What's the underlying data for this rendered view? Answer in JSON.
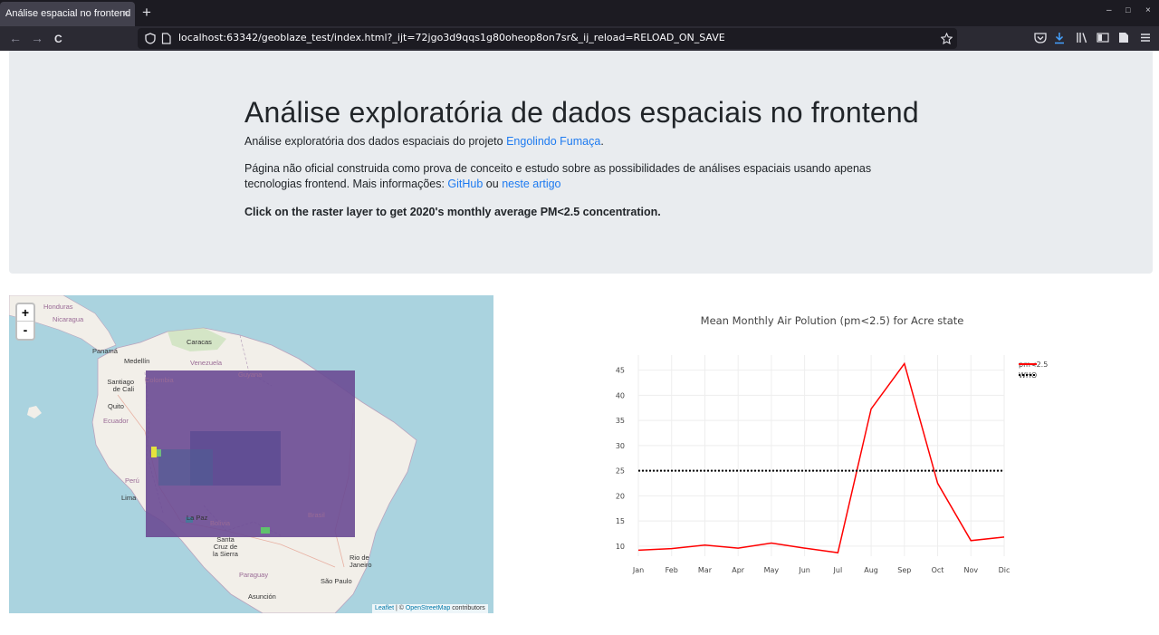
{
  "browser": {
    "tab_title": "Análise espacial no frontend",
    "tab_close": "×",
    "new_tab": "+",
    "url": "localhost:63342/geoblaze_test/index.html?_ijt=72jgo3d9qqs1g80oheop8on7sr&_ij_reload=RELOAD_ON_SAVE",
    "back": "←",
    "forward": "→",
    "reload": "C",
    "minimize": "–",
    "maximize": "□",
    "close": "×"
  },
  "header": {
    "title": "Análise exploratória de dados espaciais no frontend",
    "intro_prefix": "Análise exploratória dos dados espaciais do projeto ",
    "intro_link": "Engolindo Fumaça",
    "intro_suffix": ".",
    "desc_prefix": "Página não oficial construida como prova de conceito e estudo sobre as possibilidades de análises espaciais usando apenas tecnologias frontend. Mais informações: ",
    "github_link": "GitHub",
    "desc_or": " ou ",
    "article_link": "neste artigo",
    "instruction": "Click on the raster layer to get 2020's monthly average PM<2.5 concentration."
  },
  "map": {
    "zoom_in": "+",
    "zoom_out": "-",
    "attribution_leaflet": "Leaflet",
    "attribution_sep": " | © ",
    "attribution_osm": "OpenStreetMap",
    "attribution_suffix": " contributors",
    "labels": {
      "honduras": "Honduras",
      "nicaragua": "Nicaragua",
      "panama": "Panamá",
      "medellin": "Medellín",
      "caracas": "Caracas",
      "venezuela": "Venezuela",
      "guyana": "Guyana",
      "colombia": "Colombia",
      "santiago": "Santiago de Cali",
      "quito": "Quito",
      "ecuador": "Ecuador",
      "peru": "Perú",
      "lima": "Lima",
      "lapaz": "La Paz",
      "bolivia": "Bolivia",
      "brasil": "Brasil",
      "santacruz": "Santa Cruz de la Sierra",
      "paraguay": "Paraguay",
      "riodejaneiro": "Rio de Janeiro",
      "saopaulo": "São Paulo",
      "asuncion": "Asunción"
    }
  },
  "chart_data": {
    "type": "line",
    "title": "Mean Monthly Air Polution (pm<2.5) for Acre state",
    "categories": [
      "Jan",
      "Feb",
      "Mar",
      "Apr",
      "May",
      "Jun",
      "Jul",
      "Aug",
      "Sep",
      "Oct",
      "Nov",
      "Dic"
    ],
    "series": [
      {
        "name": "pm<2.5",
        "color": "#ff0000",
        "style": "solid",
        "values": [
          9.2,
          9.5,
          10.2,
          9.6,
          10.6,
          9.6,
          8.7,
          37.3,
          46.3,
          22.5,
          11.1,
          11.8
        ]
      },
      {
        "name": "WHO",
        "color": "#000000",
        "style": "dotted",
        "values": [
          25,
          25,
          25,
          25,
          25,
          25,
          25,
          25,
          25,
          25,
          25,
          25
        ]
      }
    ],
    "yticks": [
      10,
      15,
      20,
      25,
      30,
      35,
      40,
      45
    ],
    "ylim": [
      8,
      48
    ],
    "grid": true,
    "legend_position": "top-right"
  }
}
